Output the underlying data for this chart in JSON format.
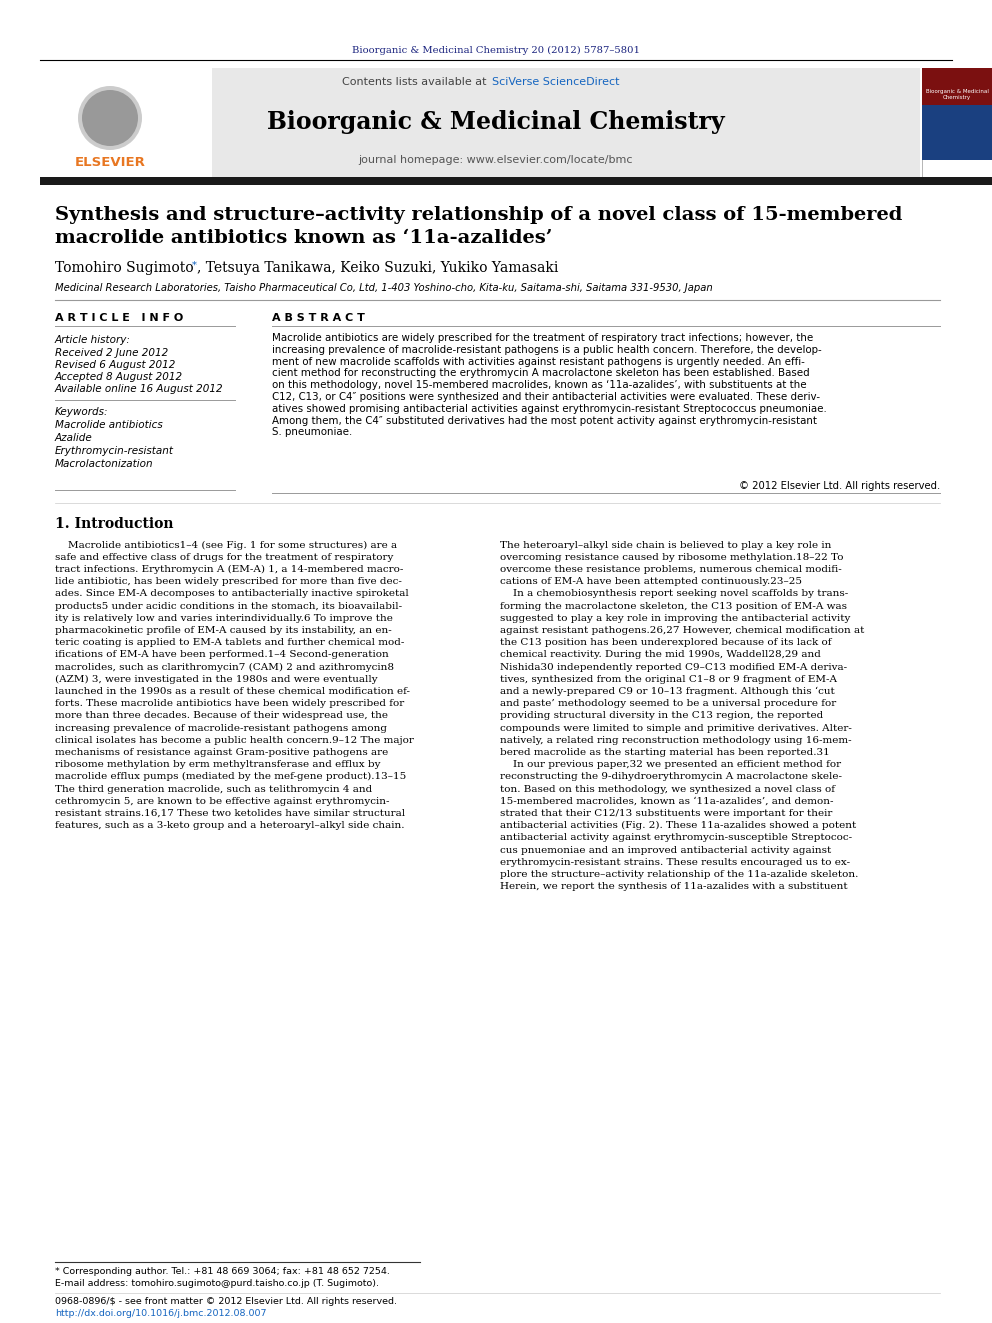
{
  "page_bg": "#ffffff",
  "journal_ref_color": "#1a237e",
  "journal_ref": "Bioorganic & Medicinal Chemistry 20 (2012) 5787–5801",
  "header_bg": "#e8e8e8",
  "header_text": "Contents lists available at",
  "sciverse_color": "#1565c0",
  "sciverse_text": "SciVerse ScienceDirect",
  "journal_title": "Bioorganic & Medicinal Chemistry",
  "journal_homepage": "journal homepage: www.elsevier.com/locate/bmc",
  "elsevier_color": "#e87722",
  "elsevier_text": "ELSEVIER",
  "thick_bar_color": "#1a1a1a",
  "article_title_line1": "Synthesis and structure–activity relationship of a novel class of 15-membered",
  "article_title_line2": "macrolide antibiotics known as ‘11a-azalides’",
  "authors": "Tomohiro Sugimoto",
  "authors2": ", Tetsuya Tanikawa, Keiko Suzuki, Yukiko Yamasaki",
  "affiliation": "Medicinal Research Laboratories, Taisho Pharmaceutical Co, Ltd, 1-403 Yoshino-cho, Kita-ku, Saitama-shi, Saitama 331-9530, Japan",
  "article_info_header": "A R T I C L E   I N F O",
  "abstract_header": "A B S T R A C T",
  "article_history_label": "Article history:",
  "received": "Received 2 June 2012",
  "revised": "Revised 6 August 2012",
  "accepted": "Accepted 8 August 2012",
  "available": "Available online 16 August 2012",
  "keywords_label": "Keywords:",
  "keywords": [
    "Macrolide antibiotics",
    "Azalide",
    "Erythromycin-resistant",
    "Macrolactonization"
  ],
  "copyright": "© 2012 Elsevier Ltd. All rights reserved.",
  "intro_header": "1. Introduction",
  "abstract_lines": [
    "Macrolide antibiotics are widely prescribed for the treatment of respiratory tract infections; however, the",
    "increasing prevalence of macrolide-resistant pathogens is a public health concern. Therefore, the develop-",
    "ment of new macrolide scaffolds with activities against resistant pathogens is urgently needed. An effi-",
    "cient method for reconstructing the erythromycin A macrolactone skeleton has been established. Based",
    "on this methodology, novel 15-membered macrolides, known as ‘11a-azalides’, with substituents at the",
    "C12, C13, or C4″ positions were synthesized and their antibacterial activities were evaluated. These deriv-",
    "atives showed promising antibacterial activities against erythromycin-resistant Streptococcus pneumoniae.",
    "Among them, the C4″ substituted derivatives had the most potent activity against erythromycin-resistant",
    "S. pneumoniae."
  ],
  "intro1_lines": [
    "    Macrolide antibiotics1–4 (see Fig. 1 for some structures) are a",
    "safe and effective class of drugs for the treatment of respiratory",
    "tract infections. Erythromycin A (EM-A) 1, a 14-membered macro-",
    "lide antibiotic, has been widely prescribed for more than five dec-",
    "ades. Since EM-A decomposes to antibacterially inactive spiroketal",
    "products5 under acidic conditions in the stomach, its bioavailabil-",
    "ity is relatively low and varies interindividually.6 To improve the",
    "pharmacokinetic profile of EM-A caused by its instability, an en-",
    "teric coating is applied to EM-A tablets and further chemical mod-",
    "ifications of EM-A have been performed.1–4 Second-generation",
    "macrolides, such as clarithromycin7 (CAM) 2 and azithromycin8",
    "(AZM) 3, were investigated in the 1980s and were eventually",
    "launched in the 1990s as a result of these chemical modification ef-",
    "forts. These macrolide antibiotics have been widely prescribed for",
    "more than three decades. Because of their widespread use, the",
    "increasing prevalence of macrolide-resistant pathogens among",
    "clinical isolates has become a public health concern.9–12 The major",
    "mechanisms of resistance against Gram-positive pathogens are",
    "ribosome methylation by erm methyltransferase and efflux by",
    "macrolide efflux pumps (mediated by the mef-gene product).13–15",
    "The third generation macrolide, such as telithromycin 4 and",
    "cethromycin 5, are known to be effective against erythromycin-",
    "resistant strains.16,17 These two ketolides have similar structural",
    "features, such as a 3-keto group and a heteroaryl–alkyl side chain."
  ],
  "intro2_lines": [
    "The heteroaryl–alkyl side chain is believed to play a key role in",
    "overcoming resistance caused by ribosome methylation.18–22 To",
    "overcome these resistance problems, numerous chemical modifi-",
    "cations of EM-A have been attempted continuously.23–25",
    "    In a chemobiosynthesis report seeking novel scaffolds by trans-",
    "forming the macrolactone skeleton, the C13 position of EM-A was",
    "suggested to play a key role in improving the antibacterial activity",
    "against resistant pathogens.26,27 However, chemical modification at",
    "the C13 position has been underexplored because of its lack of",
    "chemical reactivity. During the mid 1990s, Waddell28,29 and",
    "Nishida30 independently reported C9–C13 modified EM-A deriva-",
    "tives, synthesized from the original C1–8 or 9 fragment of EM-A",
    "and a newly-prepared C9 or 10–13 fragment. Although this ‘cut",
    "and paste’ methodology seemed to be a universal procedure for",
    "providing structural diversity in the C13 region, the reported",
    "compounds were limited to simple and primitive derivatives. Alter-",
    "natively, a related ring reconstruction methodology using 16-mem-",
    "bered macrolide as the starting material has been reported.31",
    "    In our previous paper,32 we presented an efficient method for",
    "reconstructing the 9-dihydroerythromycin A macrolactone skele-",
    "ton. Based on this methodology, we synthesized a novel class of",
    "15-membered macrolides, known as ‘11a-azalides’, and demon-",
    "strated that their C12/13 substituents were important for their",
    "antibacterial activities (Fig. 2). These 11a-azalides showed a potent",
    "antibacterial activity against erythromycin-susceptible Streptococ-",
    "cus pnuemoniae and an improved antibacterial activity against",
    "erythromycin-resistant strains. These results encouraged us to ex-",
    "plore the structure–activity relationship of the 11a-azalide skeleton.",
    "Herein, we report the synthesis of 11a-azalides with a substituent"
  ],
  "footnote1": "* Corresponding author. Tel.: +81 48 669 3064; fax: +81 48 652 7254.",
  "footnote2": "E-mail address: tomohiro.sugimoto@purd.taisho.co.jp (T. Sugimoto).",
  "footnote3": "0968-0896/$ - see front matter © 2012 Elsevier Ltd. All rights reserved.",
  "footnote4": "http://dx.doi.org/10.1016/j.bmc.2012.08.007",
  "link_color": "#1565c0"
}
